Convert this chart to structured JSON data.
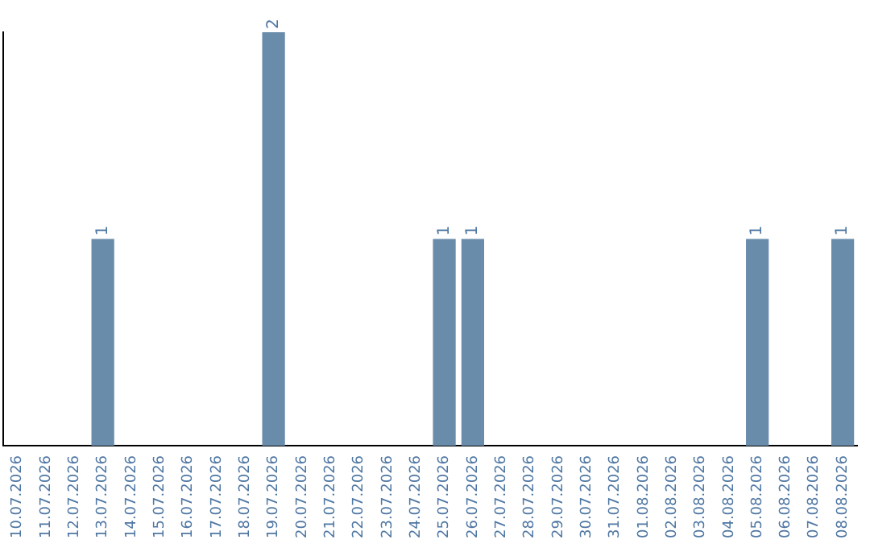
{
  "chart_data": {
    "type": "bar",
    "categories": [
      "10.07.2026",
      "11.07.2026",
      "12.07.2026",
      "13.07.2026",
      "14.07.2026",
      "15.07.2026",
      "16.07.2026",
      "17.07.2026",
      "18.07.2026",
      "19.07.2026",
      "20.07.2026",
      "21.07.2026",
      "22.07.2026",
      "23.07.2026",
      "24.07.2026",
      "25.07.2026",
      "26.07.2026",
      "27.07.2026",
      "28.07.2026",
      "29.07.2026",
      "30.07.2026",
      "31.07.2026",
      "01.08.2026",
      "02.08.2026",
      "03.08.2026",
      "04.08.2026",
      "05.08.2026",
      "06.08.2026",
      "07.08.2026",
      "08.08.2026"
    ],
    "values": [
      0,
      0,
      0,
      1,
      0,
      0,
      0,
      0,
      0,
      2,
      0,
      0,
      0,
      0,
      0,
      1,
      1,
      0,
      0,
      0,
      0,
      0,
      0,
      0,
      0,
      0,
      1,
      0,
      0,
      1
    ],
    "value_labels": [
      null,
      null,
      null,
      "1",
      null,
      null,
      null,
      null,
      null,
      "2",
      null,
      null,
      null,
      null,
      null,
      "1",
      "1",
      null,
      null,
      null,
      null,
      null,
      null,
      null,
      null,
      null,
      "1",
      null,
      null,
      "1"
    ],
    "color": "#6a8cab",
    "grid": false,
    "legend": false,
    "tick_labels": "x"
  }
}
